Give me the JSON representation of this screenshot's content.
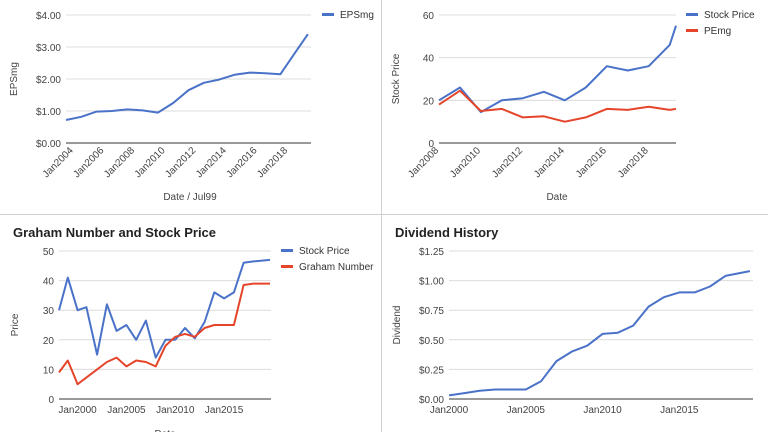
{
  "charts": [
    {
      "id": "eps",
      "chart_data": {
        "type": "line",
        "title": "",
        "xlabel": "Date / Jul99",
        "ylabel": "EPSmg",
        "x_ticks": [
          "Jan2004",
          "Jan2006",
          "Jan2008",
          "Jan2010",
          "Jan2012",
          "Jan2014",
          "Jan2016",
          "Jan2018"
        ],
        "y_ticks": [
          "$0.00",
          "$1.00",
          "$2.00",
          "$3.00",
          "$4.00"
        ],
        "xlim": [
          2003.5,
          2019.5
        ],
        "ylim": [
          0,
          4
        ],
        "legend_position": "top-right",
        "series": [
          {
            "name": "EPSmg",
            "color": "#4a72c8",
            "x": [
              2003.5,
              2004.5,
              2005.5,
              2006.5,
              2007.5,
              2008.5,
              2009.5,
              2010.5,
              2011.5,
              2012.5,
              2013.5,
              2014.5,
              2015.5,
              2016.5,
              2017.5,
              2018.5,
              2019.3
            ],
            "y": [
              0.72,
              0.82,
              0.98,
              1.0,
              1.05,
              1.02,
              0.95,
              1.25,
              1.65,
              1.88,
              1.98,
              2.13,
              2.2,
              2.18,
              2.15,
              2.85,
              3.4
            ]
          }
        ]
      }
    },
    {
      "id": "pe",
      "chart_data": {
        "type": "line",
        "title": "",
        "xlabel": "Date",
        "ylabel": "Stock Price",
        "x_ticks": [
          "Jan2008",
          "Jan2010",
          "Jan2012",
          "Jan2014",
          "Jan2016",
          "Jan2018"
        ],
        "y_ticks": [
          "0",
          "20",
          "40",
          "60"
        ],
        "xlim": [
          2008,
          2019.3
        ],
        "ylim": [
          0,
          60
        ],
        "legend_position": "top-right",
        "series": [
          {
            "name": "Stock Price",
            "color": "#4a72c8",
            "x": [
              2008,
              2009,
              2010,
              2011,
              2012,
              2013,
              2014,
              2015,
              2016,
              2017,
              2018,
              2019,
              2019.3
            ],
            "y": [
              20,
              26,
              14.5,
              20,
              21,
              24,
              20,
              26,
              36,
              34,
              36,
              46,
              55
            ]
          },
          {
            "name": "PEmg",
            "color": "#e5452a",
            "x": [
              2008,
              2009,
              2010,
              2011,
              2012,
              2013,
              2014,
              2015,
              2016,
              2017,
              2018,
              2019,
              2019.3
            ],
            "y": [
              18,
              24.5,
              15,
              16,
              12,
              12.5,
              10,
              12,
              16,
              15.5,
              17,
              15.5,
              16
            ]
          }
        ]
      }
    },
    {
      "id": "graham",
      "chart_data": {
        "type": "line",
        "title": "Graham Number and Stock Price",
        "xlabel": "Date",
        "ylabel": "Price",
        "x_ticks": [
          "Jan2000",
          "Jan2005",
          "Jan2010",
          "Jan2015"
        ],
        "y_ticks": [
          "0",
          "10",
          "20",
          "30",
          "40",
          "50"
        ],
        "xlim": [
          1998.1,
          2019.8
        ],
        "ylim": [
          0,
          50
        ],
        "legend_position": "top-right",
        "series": [
          {
            "name": "Stock Price",
            "color": "#4a72c8",
            "x": [
              1998.1,
              1999,
              2000,
              2000.9,
              2002,
              2003,
              2004,
              2005,
              2006,
              2007,
              2008,
              2009,
              2010,
              2011,
              2012,
              2013,
              2014,
              2015,
              2016,
              2017,
              2018,
              2019.7
            ],
            "y": [
              30,
              41,
              30,
              31,
              15,
              32,
              23,
              25,
              20,
              26.5,
              14,
              20,
              20,
              24,
              20.5,
              26,
              36,
              34,
              36,
              46,
              46.5,
              47
            ]
          },
          {
            "name": "Graham Number",
            "color": "#e5452a",
            "x": [
              1998.1,
              1999,
              2000,
              2001,
              2002,
              2003,
              2004,
              2005,
              2006,
              2007,
              2008,
              2009,
              2010,
              2011,
              2012,
              2013,
              2014,
              2015,
              2016,
              2017,
              2018,
              2019.7
            ],
            "y": [
              9,
              13,
              5,
              7.5,
              10,
              12.5,
              14,
              11,
              13,
              12.5,
              11,
              18,
              21,
              22,
              21,
              24,
              25,
              25,
              25,
              38.5,
              39,
              39
            ]
          }
        ]
      }
    },
    {
      "id": "dividend",
      "chart_data": {
        "type": "line",
        "title": "Dividend History",
        "xlabel": "",
        "ylabel": "Dividend",
        "x_ticks": [
          "Jan2000",
          "Jan2005",
          "Jan2010",
          "Jan2015"
        ],
        "y_ticks": [
          "$0.00",
          "$0.25",
          "$0.50",
          "$0.75",
          "$1.00",
          "$1.25"
        ],
        "xlim": [
          2000,
          2019.8
        ],
        "ylim": [
          0,
          1.25
        ],
        "series": [
          {
            "name": "",
            "color": "#4a72c8",
            "x": [
              2000,
              2001,
              2002,
              2003,
              2004,
              2005,
              2006,
              2007,
              2008,
              2009,
              2010,
              2011,
              2012,
              2013,
              2014,
              2015,
              2016,
              2017,
              2018,
              2019.6
            ],
            "y": [
              0.03,
              0.05,
              0.07,
              0.08,
              0.08,
              0.08,
              0.15,
              0.32,
              0.4,
              0.45,
              0.55,
              0.56,
              0.62,
              0.78,
              0.86,
              0.9,
              0.9,
              0.95,
              1.04,
              1.08
            ]
          }
        ]
      }
    }
  ]
}
